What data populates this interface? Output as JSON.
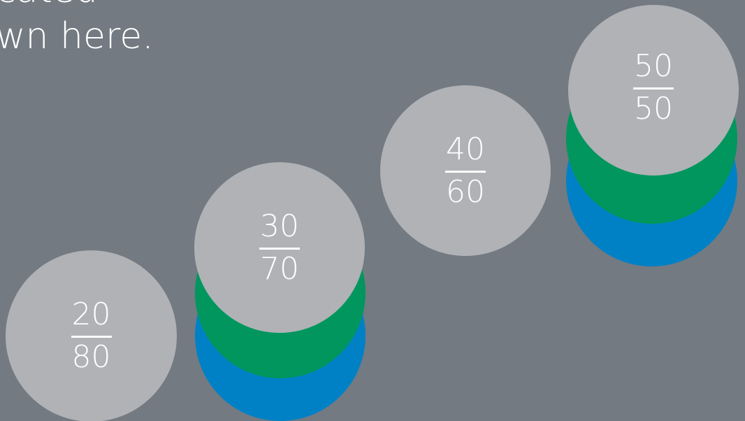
{
  "heading": {
    "line1": "cated",
    "line2": "wn here."
  },
  "colors": {
    "background": "#737a82",
    "front_circle": "#b0b2b6",
    "green_layer": "#00965e",
    "blue_layer": "#0081c6",
    "text": "#ffffff"
  },
  "ratios": [
    {
      "numerator": "20",
      "denominator": "80",
      "layers": [
        "grey"
      ]
    },
    {
      "numerator": "30",
      "denominator": "70",
      "layers": [
        "blue",
        "green",
        "grey"
      ]
    },
    {
      "numerator": "40",
      "denominator": "60",
      "layers": [
        "grey"
      ]
    },
    {
      "numerator": "50",
      "denominator": "50",
      "layers": [
        "blue",
        "green",
        "grey"
      ]
    }
  ]
}
